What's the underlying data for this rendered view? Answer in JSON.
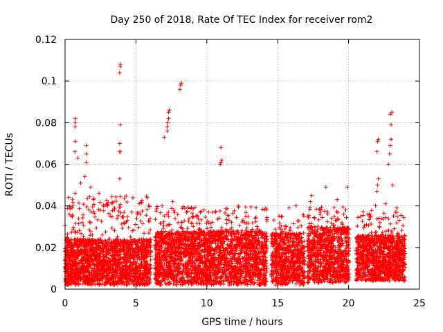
{
  "chart_data": {
    "type": "scatter",
    "title": "Day 250 of 2018, Rate Of TEC Index for receiver rom2",
    "xlabel": "GPS time / hours",
    "ylabel": "ROTI / TECUs",
    "xlim": [
      0,
      25
    ],
    "ylim": [
      0,
      0.12
    ],
    "xticks": [
      0,
      5,
      10,
      15,
      20,
      25
    ],
    "xtick_labels": [
      "0",
      "5",
      "10",
      "15",
      "20",
      "25"
    ],
    "yticks": [
      0,
      0.02,
      0.04,
      0.06,
      0.08,
      0.1,
      0.12
    ],
    "ytick_labels": [
      "0",
      "0.02",
      "0.04",
      "0.06",
      "0.08",
      "0.1",
      "0.12"
    ],
    "grid": true,
    "marker": "+",
    "color": "#ff0000",
    "data_gaps_hours": [
      [
        6.05,
        6.35
      ],
      [
        14.25,
        14.55
      ],
      [
        16.9,
        17.1
      ],
      [
        20.05,
        20.55
      ]
    ],
    "series": [
      {
        "name": "ROTI",
        "points": [
          [
            0.3,
            0.036
          ],
          [
            0.5,
            0.039
          ],
          [
            0.7,
            0.046
          ],
          [
            0.7,
            0.066
          ],
          [
            0.72,
            0.071
          ],
          [
            0.7,
            0.078
          ],
          [
            0.72,
            0.08
          ],
          [
            0.73,
            0.082
          ],
          [
            0.9,
            0.063
          ],
          [
            1.1,
            0.051
          ],
          [
            1.4,
            0.054
          ],
          [
            1.5,
            0.061
          ],
          [
            1.5,
            0.065
          ],
          [
            1.5,
            0.069
          ],
          [
            1.8,
            0.049
          ],
          [
            2.0,
            0.043
          ],
          [
            2.4,
            0.046
          ],
          [
            3.0,
            0.04
          ],
          [
            3.5,
            0.038
          ],
          [
            3.85,
            0.053
          ],
          [
            3.85,
            0.066
          ],
          [
            3.9,
            0.066
          ],
          [
            3.85,
            0.07
          ],
          [
            3.9,
            0.079
          ],
          [
            3.85,
            0.104
          ],
          [
            3.9,
            0.107
          ],
          [
            3.9,
            0.108
          ],
          [
            4.4,
            0.033
          ],
          [
            5.3,
            0.036
          ],
          [
            7.0,
            0.073
          ],
          [
            7.2,
            0.076
          ],
          [
            7.2,
            0.078
          ],
          [
            7.25,
            0.08
          ],
          [
            7.3,
            0.082
          ],
          [
            7.3,
            0.085
          ],
          [
            7.35,
            0.086
          ],
          [
            7.6,
            0.042
          ],
          [
            8.1,
            0.096
          ],
          [
            8.15,
            0.098
          ],
          [
            8.2,
            0.099
          ],
          [
            9.0,
            0.035
          ],
          [
            9.8,
            0.038
          ],
          [
            10.6,
            0.037
          ],
          [
            10.95,
            0.06
          ],
          [
            11.0,
            0.061
          ],
          [
            11.05,
            0.062
          ],
          [
            11.0,
            0.068
          ],
          [
            12.5,
            0.028
          ],
          [
            13.4,
            0.026
          ],
          [
            15.3,
            0.035
          ],
          [
            15.8,
            0.039
          ],
          [
            16.3,
            0.04
          ],
          [
            17.3,
            0.042
          ],
          [
            17.4,
            0.045
          ],
          [
            18.0,
            0.037
          ],
          [
            18.4,
            0.049
          ],
          [
            19.2,
            0.043
          ],
          [
            19.8,
            0.038
          ],
          [
            19.9,
            0.049
          ],
          [
            21.5,
            0.036
          ],
          [
            21.9,
            0.04
          ],
          [
            22.0,
            0.047
          ],
          [
            22.05,
            0.05
          ],
          [
            22.1,
            0.053
          ],
          [
            22.0,
            0.066
          ],
          [
            22.05,
            0.071
          ],
          [
            22.1,
            0.072
          ],
          [
            22.6,
            0.041
          ],
          [
            22.8,
            0.06
          ],
          [
            22.9,
            0.065
          ],
          [
            22.95,
            0.069
          ],
          [
            23.0,
            0.072
          ],
          [
            23.0,
            0.079
          ],
          [
            22.95,
            0.084
          ],
          [
            23.05,
            0.085
          ],
          [
            23.1,
            0.05
          ],
          [
            23.4,
            0.039
          ]
        ],
        "dense_bands": [
          {
            "x": [
              0.0,
              6.05
            ],
            "y_base": [
              0.002,
              0.024
            ],
            "y_spike": 0.045,
            "points": 1900
          },
          {
            "x": [
              6.35,
              14.25
            ],
            "y_base": [
              0.002,
              0.028
            ],
            "y_spike": 0.04,
            "points": 2400
          },
          {
            "x": [
              14.55,
              16.9
            ],
            "y_base": [
              0.002,
              0.027
            ],
            "y_spike": 0.036,
            "points": 700
          },
          {
            "x": [
              17.1,
              20.05
            ],
            "y_base": [
              0.003,
              0.03
            ],
            "y_spike": 0.04,
            "points": 900
          },
          {
            "x": [
              20.55,
              24.0
            ],
            "y_base": [
              0.004,
              0.026
            ],
            "y_spike": 0.038,
            "points": 1100
          }
        ]
      }
    ]
  }
}
